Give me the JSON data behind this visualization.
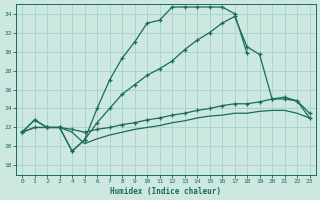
{
  "xlabel": "Humidex (Indice chaleur)",
  "bg_color": "#cce8e0",
  "grid_color": "#aad4cc",
  "line_color": "#1a6b5a",
  "xlim": [
    -0.5,
    23.5
  ],
  "ylim": [
    17,
    35
  ],
  "yticks": [
    18,
    20,
    22,
    24,
    26,
    28,
    30,
    32,
    34
  ],
  "xticks": [
    0,
    1,
    2,
    3,
    4,
    5,
    6,
    7,
    8,
    9,
    10,
    11,
    12,
    13,
    14,
    15,
    16,
    17,
    18,
    19,
    20,
    21,
    22,
    23
  ],
  "curve1_x": [
    0,
    1,
    2,
    3,
    4,
    5,
    6,
    7,
    8,
    9,
    10,
    11,
    12,
    13,
    14,
    15,
    16,
    17,
    18
  ],
  "curve1_y": [
    21.5,
    22.8,
    22.0,
    22.0,
    19.5,
    20.7,
    24.0,
    27.0,
    29.3,
    31.0,
    33.0,
    33.3,
    34.7,
    34.7,
    34.7,
    34.7,
    34.7,
    34.0,
    29.8
  ],
  "curve2_x": [
    0,
    1,
    2,
    3,
    4,
    5,
    6,
    7,
    8,
    9,
    10,
    11,
    12,
    13,
    14,
    15,
    16,
    17,
    18,
    19,
    20,
    21,
    22,
    23
  ],
  "curve2_y": [
    21.5,
    22.8,
    22.0,
    22.0,
    19.5,
    20.7,
    22.5,
    24.0,
    25.5,
    26.5,
    27.5,
    28.2,
    29.0,
    30.2,
    31.2,
    32.0,
    33.0,
    33.7,
    30.5,
    29.7,
    25.0,
    25.0,
    24.8,
    23.0
  ],
  "curve3_x": [
    0,
    1,
    2,
    3,
    4,
    5,
    6,
    7,
    8,
    9,
    10,
    11,
    12,
    13,
    14,
    15,
    16,
    17,
    18,
    19,
    20,
    21,
    22,
    23
  ],
  "curve3_y": [
    21.5,
    22.0,
    22.0,
    22.0,
    21.8,
    21.5,
    21.8,
    22.0,
    22.3,
    22.5,
    22.8,
    23.0,
    23.3,
    23.5,
    23.8,
    24.0,
    24.3,
    24.5,
    24.5,
    24.7,
    25.0,
    25.2,
    24.8,
    23.5
  ],
  "curve4_x": [
    0,
    1,
    2,
    3,
    4,
    5,
    6,
    7,
    8,
    9,
    10,
    11,
    12,
    13,
    14,
    15,
    16,
    17,
    18,
    19,
    20,
    21,
    22,
    23
  ],
  "curve4_y": [
    21.5,
    22.0,
    22.0,
    22.0,
    21.5,
    20.3,
    20.8,
    21.2,
    21.5,
    21.8,
    22.0,
    22.2,
    22.5,
    22.7,
    23.0,
    23.2,
    23.3,
    23.5,
    23.5,
    23.7,
    23.8,
    23.8,
    23.5,
    23.0
  ]
}
